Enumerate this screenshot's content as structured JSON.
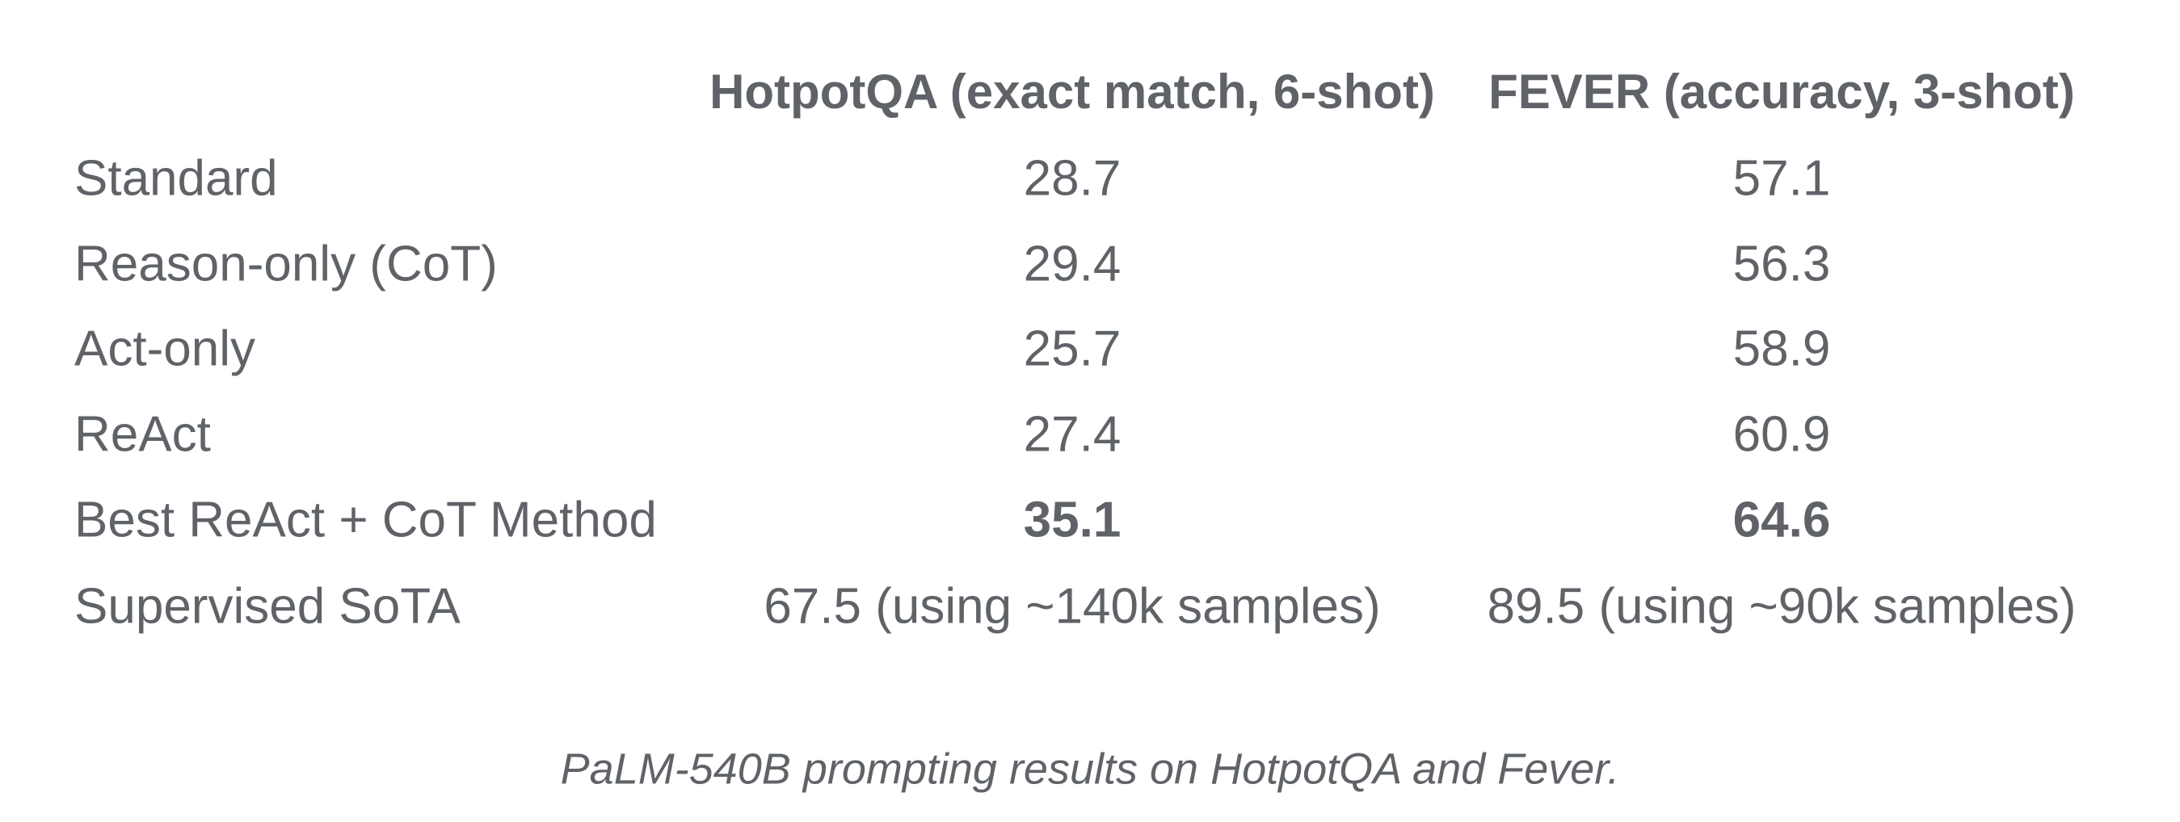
{
  "table": {
    "header": [
      "HotpotQA (exact match, 6-shot)",
      "FEVER (accuracy, 3-shot)"
    ],
    "rows": [
      [
        "Standard",
        28.7,
        57.1
      ],
      [
        "Reason-only (CoT)",
        29.4,
        56.3
      ],
      [
        "Act-only",
        25.7,
        58.9
      ],
      [
        "ReAct",
        27.4,
        60.9
      ],
      [
        "Best ReAct + CoT Method",
        35.1,
        64.6
      ],
      [
        "Supervised SoTA",
        "67.5 (using ~140k samples)",
        "89.5 (using ~90k samples)"
      ]
    ]
  },
  "caption": "PaLM-540B prompting results on HotpotQA and Fever."
}
